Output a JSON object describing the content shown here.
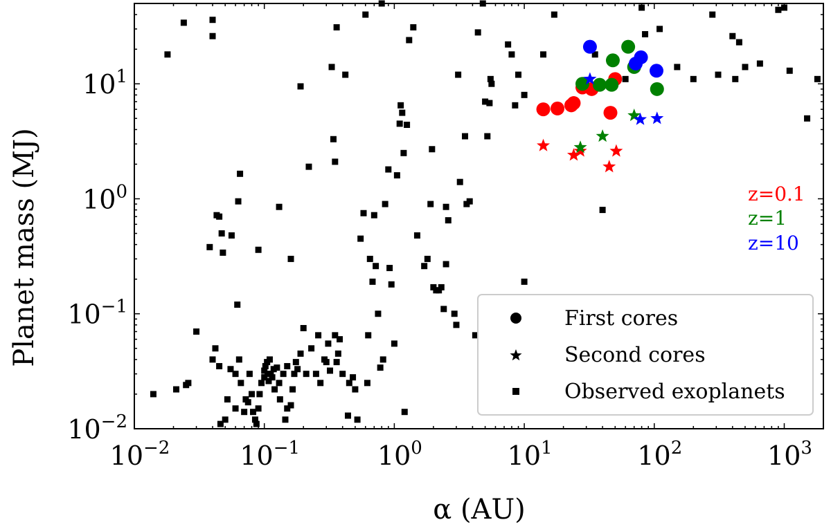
{
  "chart_data": {
    "type": "scatter",
    "x_scale": "log",
    "y_scale": "log",
    "xlim": [
      0.01,
      2000
    ],
    "ylim": [
      0.01,
      50
    ],
    "xlabel": "α (AU)",
    "ylabel": "Planet mass (MJ)",
    "x_ticks": [
      {
        "value": 0.01,
        "mant": "10",
        "exp": "−2"
      },
      {
        "value": 0.1,
        "mant": "10",
        "exp": "−1"
      },
      {
        "value": 1,
        "mant": "10",
        "exp": "0"
      },
      {
        "value": 10,
        "mant": "10",
        "exp": "1"
      },
      {
        "value": 100,
        "mant": "10",
        "exp": "2"
      },
      {
        "value": 1000,
        "mant": "10",
        "exp": "3"
      }
    ],
    "y_ticks": [
      {
        "value": 0.01,
        "mant": "10",
        "exp": "−2"
      },
      {
        "value": 0.1,
        "mant": "10",
        "exp": "−1"
      },
      {
        "value": 1,
        "mant": "10",
        "exp": "0"
      },
      {
        "value": 10,
        "mant": "10",
        "exp": "1"
      }
    ],
    "annotations": [
      {
        "text": "z=0.1",
        "color": "#ff0000"
      },
      {
        "text": "z=1",
        "color": "#008000"
      },
      {
        "text": "z=10",
        "color": "#0000ff"
      }
    ],
    "legend": {
      "position": "lower-right",
      "entries": [
        {
          "label": "First cores",
          "marker": "circle"
        },
        {
          "label": "Second cores",
          "marker": "star"
        },
        {
          "label": "Observed exoplanets",
          "marker": "square"
        }
      ]
    },
    "series": [
      {
        "name": "Observed exoplanets",
        "marker": "square",
        "color": "#000000",
        "points": [
          [
            0.014,
            0.02
          ],
          [
            0.018,
            18
          ],
          [
            0.021,
            0.022
          ],
          [
            0.024,
            34
          ],
          [
            0.025,
            0.024
          ],
          [
            0.026,
            0.025
          ],
          [
            0.03,
            0.07
          ],
          [
            0.038,
            0.38
          ],
          [
            0.04,
            0.04
          ],
          [
            0.04,
            36
          ],
          [
            0.04,
            26
          ],
          [
            0.042,
            0.05
          ],
          [
            0.043,
            0.72
          ],
          [
            0.045,
            0.7
          ],
          [
            0.045,
            0.035
          ],
          [
            0.046,
            0.011
          ],
          [
            0.047,
            0.5
          ],
          [
            0.048,
            0.34
          ],
          [
            0.05,
            0.012
          ],
          [
            0.052,
            0.018
          ],
          [
            0.055,
            0.033
          ],
          [
            0.056,
            0.48
          ],
          [
            0.06,
            0.03
          ],
          [
            0.06,
            0.015
          ],
          [
            0.062,
            0.12
          ],
          [
            0.063,
            0.95
          ],
          [
            0.064,
            0.04
          ],
          [
            0.065,
            1.65
          ],
          [
            0.066,
            0.025
          ],
          [
            0.07,
            0.014
          ],
          [
            0.072,
            0.018
          ],
          [
            0.075,
            0.017
          ],
          [
            0.077,
            0.03
          ],
          [
            0.08,
            0.02
          ],
          [
            0.082,
            0.014
          ],
          [
            0.085,
            0.012
          ],
          [
            0.087,
            0.011
          ],
          [
            0.09,
            0.36
          ],
          [
            0.09,
            0.015
          ],
          [
            0.092,
            0.02
          ],
          [
            0.095,
            0.025
          ],
          [
            0.1,
            0.028
          ],
          [
            0.1,
            0.032
          ],
          [
            0.102,
            0.035
          ],
          [
            0.105,
            0.038
          ],
          [
            0.106,
            0.03
          ],
          [
            0.108,
            0.026
          ],
          [
            0.11,
            0.04
          ],
          [
            0.112,
            0.03
          ],
          [
            0.115,
            0.028
          ],
          [
            0.118,
            0.033
          ],
          [
            0.12,
            0.022
          ],
          [
            0.125,
            0.034
          ],
          [
            0.13,
            0.025
          ],
          [
            0.13,
            0.85
          ],
          [
            0.132,
            0.018
          ],
          [
            0.14,
            0.03
          ],
          [
            0.145,
            0.012
          ],
          [
            0.15,
            0.035
          ],
          [
            0.15,
            0.015
          ],
          [
            0.16,
            0.3
          ],
          [
            0.16,
            0.016
          ],
          [
            0.165,
            0.022
          ],
          [
            0.17,
            0.03
          ],
          [
            0.175,
            0.038
          ],
          [
            0.18,
            0.033
          ],
          [
            0.19,
            9.5
          ],
          [
            0.19,
            0.045
          ],
          [
            0.2,
            0.075
          ],
          [
            0.21,
            0.03
          ],
          [
            0.22,
            1.9
          ],
          [
            0.23,
            0.05
          ],
          [
            0.25,
            0.03
          ],
          [
            0.26,
            0.065
          ],
          [
            0.27,
            0.025
          ],
          [
            0.29,
            0.04
          ],
          [
            0.3,
            0.038
          ],
          [
            0.31,
            0.055
          ],
          [
            0.32,
            0.032
          ],
          [
            0.33,
            14
          ],
          [
            0.34,
            3.3
          ],
          [
            0.35,
            0.065
          ],
          [
            0.35,
            2.1
          ],
          [
            0.36,
            31
          ],
          [
            0.36,
            0.038
          ],
          [
            0.37,
            0.045
          ],
          [
            0.38,
            0.06
          ],
          [
            0.4,
            0.03
          ],
          [
            0.42,
            12
          ],
          [
            0.44,
            0.013
          ],
          [
            0.45,
            0.025
          ],
          [
            0.48,
            0.028
          ],
          [
            0.5,
            0.022
          ],
          [
            0.52,
            0.012
          ],
          [
            0.55,
            0.45
          ],
          [
            0.58,
            0.75
          ],
          [
            0.6,
            40
          ],
          [
            0.62,
            0.025
          ],
          [
            0.63,
            0.065
          ],
          [
            0.65,
            0.3
          ],
          [
            0.68,
            0.19
          ],
          [
            0.7,
            0.72
          ],
          [
            0.72,
            0.26
          ],
          [
            0.75,
            0.1
          ],
          [
            0.78,
            0.034
          ],
          [
            0.8,
            50
          ],
          [
            0.82,
            0.04
          ],
          [
            0.85,
            0.9
          ],
          [
            0.9,
            1.8
          ],
          [
            0.92,
            0.25
          ],
          [
            0.95,
            0.18
          ],
          [
            1.0,
            0.055
          ],
          [
            1.05,
            1.6
          ],
          [
            1.1,
            4.5
          ],
          [
            1.12,
            6.5
          ],
          [
            1.15,
            5.6
          ],
          [
            1.18,
            2.5
          ],
          [
            1.2,
            0.014
          ],
          [
            1.25,
            4.4
          ],
          [
            1.3,
            24
          ],
          [
            1.4,
            31
          ],
          [
            1.5,
            0.48
          ],
          [
            1.7,
            0.26
          ],
          [
            1.8,
            0.3
          ],
          [
            1.9,
            0.9
          ],
          [
            1.95,
            2.7
          ],
          [
            2.0,
            0.17
          ],
          [
            2.1,
            0.16
          ],
          [
            2.2,
            0.16
          ],
          [
            2.3,
            0.17
          ],
          [
            2.4,
            0.11
          ],
          [
            2.5,
            0.85
          ],
          [
            2.5,
            0.27
          ],
          [
            2.6,
            0.65
          ],
          [
            2.9,
            0.1
          ],
          [
            3.0,
            0.08
          ],
          [
            3.1,
            12
          ],
          [
            3.2,
            1.4
          ],
          [
            3.5,
            3.5
          ],
          [
            3.6,
            0.9
          ],
          [
            3.8,
            0.95
          ],
          [
            4.2,
            0.065
          ],
          [
            4.4,
            28
          ],
          [
            4.8,
            50
          ],
          [
            5.0,
            7
          ],
          [
            5.2,
            3.5
          ],
          [
            5.4,
            6.8
          ],
          [
            5.5,
            11
          ],
          [
            5.6,
            10
          ],
          [
            7.5,
            22
          ],
          [
            8.0,
            18
          ],
          [
            8.5,
            6.5
          ],
          [
            9,
            12
          ],
          [
            10,
            0.19
          ],
          [
            10,
            8
          ],
          [
            14,
            18
          ],
          [
            17,
            40
          ],
          [
            35,
            18
          ],
          [
            40,
            0.8
          ],
          [
            60,
            11
          ],
          [
            80,
            46
          ],
          [
            85,
            27
          ],
          [
            110,
            30
          ],
          [
            150,
            14
          ],
          [
            200,
            11
          ],
          [
            280,
            40
          ],
          [
            310,
            12
          ],
          [
            400,
            26
          ],
          [
            420,
            11
          ],
          [
            450,
            23
          ],
          [
            500,
            14
          ],
          [
            650,
            15
          ],
          [
            900,
            44
          ],
          [
            1000,
            46
          ],
          [
            1100,
            13
          ],
          [
            1500,
            5
          ],
          [
            1800,
            11
          ]
        ]
      },
      {
        "name": "First cores z=0.1",
        "marker": "circle",
        "color": "#ff0000",
        "points": [
          [
            14,
            6
          ],
          [
            18,
            6.1
          ],
          [
            23,
            6.5
          ],
          [
            24,
            6.8
          ],
          [
            28,
            9.3
          ],
          [
            33,
            9
          ],
          [
            46,
            5.6
          ],
          [
            50,
            11
          ]
        ]
      },
      {
        "name": "First cores z=1",
        "marker": "circle",
        "color": "#008000",
        "points": [
          [
            28,
            10
          ],
          [
            38,
            9.8
          ],
          [
            47,
            9.8
          ],
          [
            48,
            16
          ],
          [
            63,
            21
          ],
          [
            70,
            14
          ],
          [
            105,
            9
          ]
        ]
      },
      {
        "name": "First cores z=10",
        "marker": "circle",
        "color": "#0000ff",
        "points": [
          [
            32,
            21
          ],
          [
            72,
            15
          ],
          [
            79,
            17
          ],
          [
            104,
            13
          ]
        ]
      },
      {
        "name": "Second cores z=0.1",
        "marker": "star",
        "color": "#ff0000",
        "points": [
          [
            14,
            2.9
          ],
          [
            24,
            2.4
          ],
          [
            27,
            2.6
          ],
          [
            45,
            1.9
          ],
          [
            51,
            2.6
          ]
        ]
      },
      {
        "name": "Second cores z=1",
        "marker": "star",
        "color": "#008000",
        "points": [
          [
            27,
            2.8
          ],
          [
            40,
            3.5
          ],
          [
            70,
            5.3
          ]
        ]
      },
      {
        "name": "Second cores z=10",
        "marker": "star",
        "color": "#0000ff",
        "points": [
          [
            32,
            11
          ],
          [
            78,
            4.9
          ],
          [
            105,
            5
          ]
        ]
      }
    ]
  }
}
